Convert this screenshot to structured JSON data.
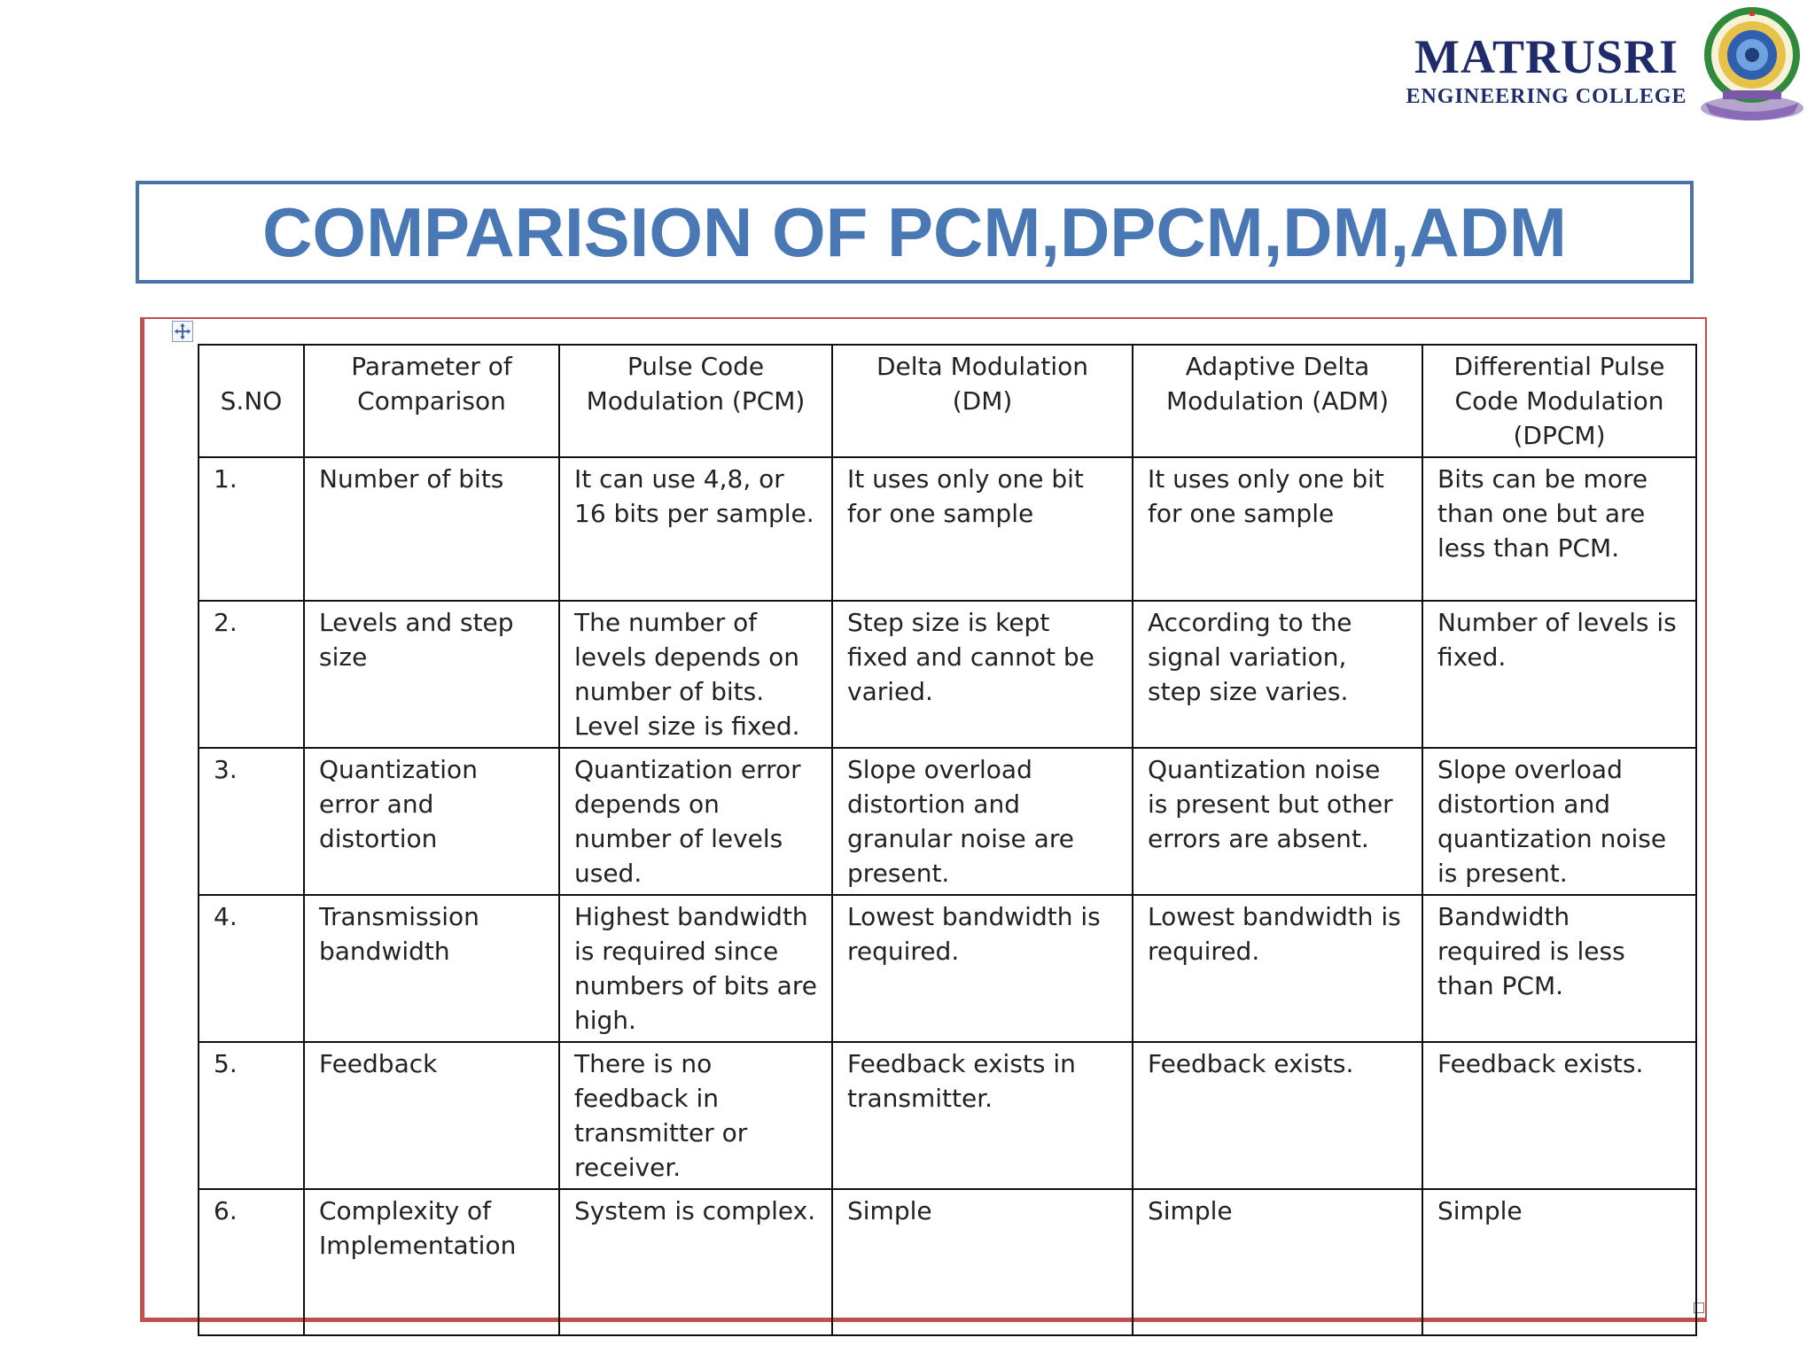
{
  "header": {
    "brand_name": "MATRUSRI",
    "brand_sub": "ENGINEERING COLLEGE",
    "logo_icon": "college-seal-icon"
  },
  "title": "COMPARISION OF PCM,DPCM,DM,ADM",
  "colors": {
    "title": "#4a78b5",
    "title_border": "#4a72a8",
    "frame": "#c0504d",
    "brand": "#1f2b6b"
  },
  "table": {
    "headers": [
      "S.NO",
      "Parameter of Comparison",
      "Pulse Code Modulation (PCM)",
      "Delta Modulation (DM)",
      "Adaptive Delta Modulation (ADM)",
      "Differential Pulse Code Modulation (DPCM)"
    ],
    "rows": [
      [
        "1.",
        "Number of bits",
        "It can use 4,8, or 16 bits per sample.",
        "It uses only one bit for one sample",
        "It uses only one bit for one sample",
        "Bits can be more than one but are less than PCM."
      ],
      [
        "2.",
        "Levels and step size",
        "The number of levels depends on number of bits. Level size is fixed.",
        "Step size is kept fixed and cannot be varied.",
        "According to the signal variation, step size varies.",
        "Number of levels is fixed."
      ],
      [
        "3.",
        "Quantization error and distortion",
        "Quantization error depends on number of levels used.",
        "Slope overload distortion and granular noise are present.",
        "Quantization noise is present but other errors are absent.",
        "Slope overload distortion and quantization noise is present."
      ],
      [
        "4.",
        "Transmission bandwidth",
        "Highest bandwidth is required since numbers of bits are high.",
        "Lowest bandwidth is required.",
        "Lowest bandwidth is required.",
        "Bandwidth required is less than PCM."
      ],
      [
        "5.",
        "Feedback",
        "There is no feedback in transmitter or receiver.",
        "Feedback exists in transmitter.",
        "Feedback exists.",
        "Feedback exists."
      ],
      [
        "6.",
        "Complexity of Implementation",
        "System is complex.",
        "Simple",
        "Simple",
        "Simple"
      ]
    ]
  }
}
